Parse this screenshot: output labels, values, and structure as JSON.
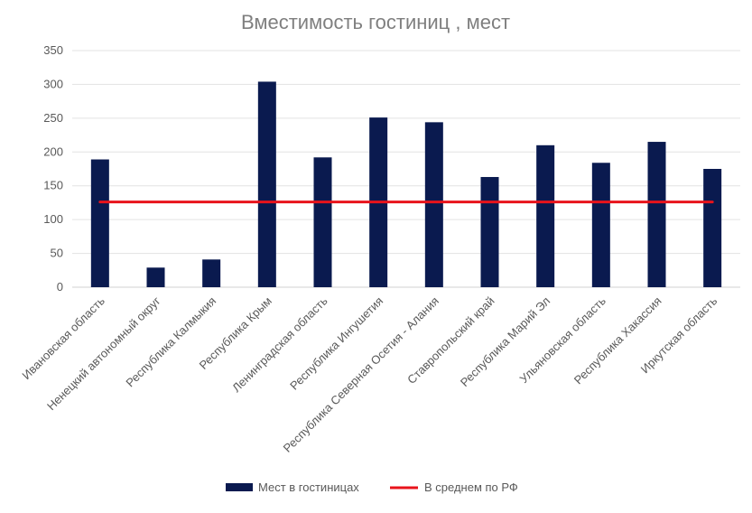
{
  "chart_data": {
    "type": "bar",
    "title": "Вместимость гостиниц , мест",
    "xlabel": "",
    "ylabel": "",
    "ylim": [
      0,
      350
    ],
    "yticks": [
      0,
      50,
      100,
      150,
      200,
      250,
      300,
      350
    ],
    "grid": true,
    "legend_position": "bottom",
    "categories": [
      "Ивановская область",
      "Ненецкий автономный округ",
      "Республика Калмыкия",
      "Республика Крым",
      "Ленинградская область",
      "Республика Ингушетия",
      "Республика Северная Осетия - Алания",
      "Ставропольский край",
      "Республика Марий Эл",
      "Ульяновская область",
      "Республика Хакассия",
      "Иркутская область"
    ],
    "series": [
      {
        "name": "Мест в гостиницах",
        "type": "bar",
        "color": "#0a1a4f",
        "values": [
          189,
          29,
          41,
          304,
          192,
          251,
          244,
          163,
          210,
          184,
          215,
          175
        ]
      },
      {
        "name": "В среднем по РФ",
        "type": "line",
        "color": "#e8131b",
        "values": [
          126,
          126,
          126,
          126,
          126,
          126,
          126,
          126,
          126,
          126,
          126,
          126
        ]
      }
    ]
  }
}
